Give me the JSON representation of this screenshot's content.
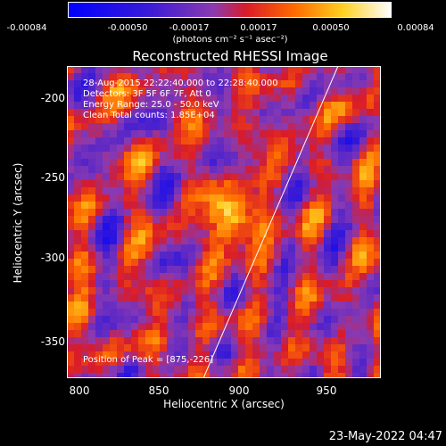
{
  "colorbar": {
    "ticks": [
      "-0.00084",
      "-0.00050",
      "-0.00017",
      "0.00017",
      "0.00050",
      "0.00084"
    ],
    "unit_label": "(photons cm⁻² s⁻¹ asec⁻²)"
  },
  "title": "Reconstructed RHESSI Image",
  "annotations": {
    "time_range": "28-Aug-2015 22:22:40.000 to 22:28:40.000",
    "detectors": "Detectors: 3F 5F 6F 7F, Att 0",
    "energy": "Energy Range: 25.0 - 50.0 keV",
    "clean": "Clean     Total counts: 1.85E+04",
    "peak": "Position of Peak = [875,-226]"
  },
  "axes": {
    "x_label": "Heliocentric X (arcsec)",
    "y_label": "Heliocentric Y (arcsec)",
    "x_ticks": [
      "800",
      "850",
      "900",
      "950"
    ],
    "y_ticks": [
      "-200",
      "-250",
      "-300",
      "-350"
    ]
  },
  "timestamp": "23-May-2022 04:47"
}
